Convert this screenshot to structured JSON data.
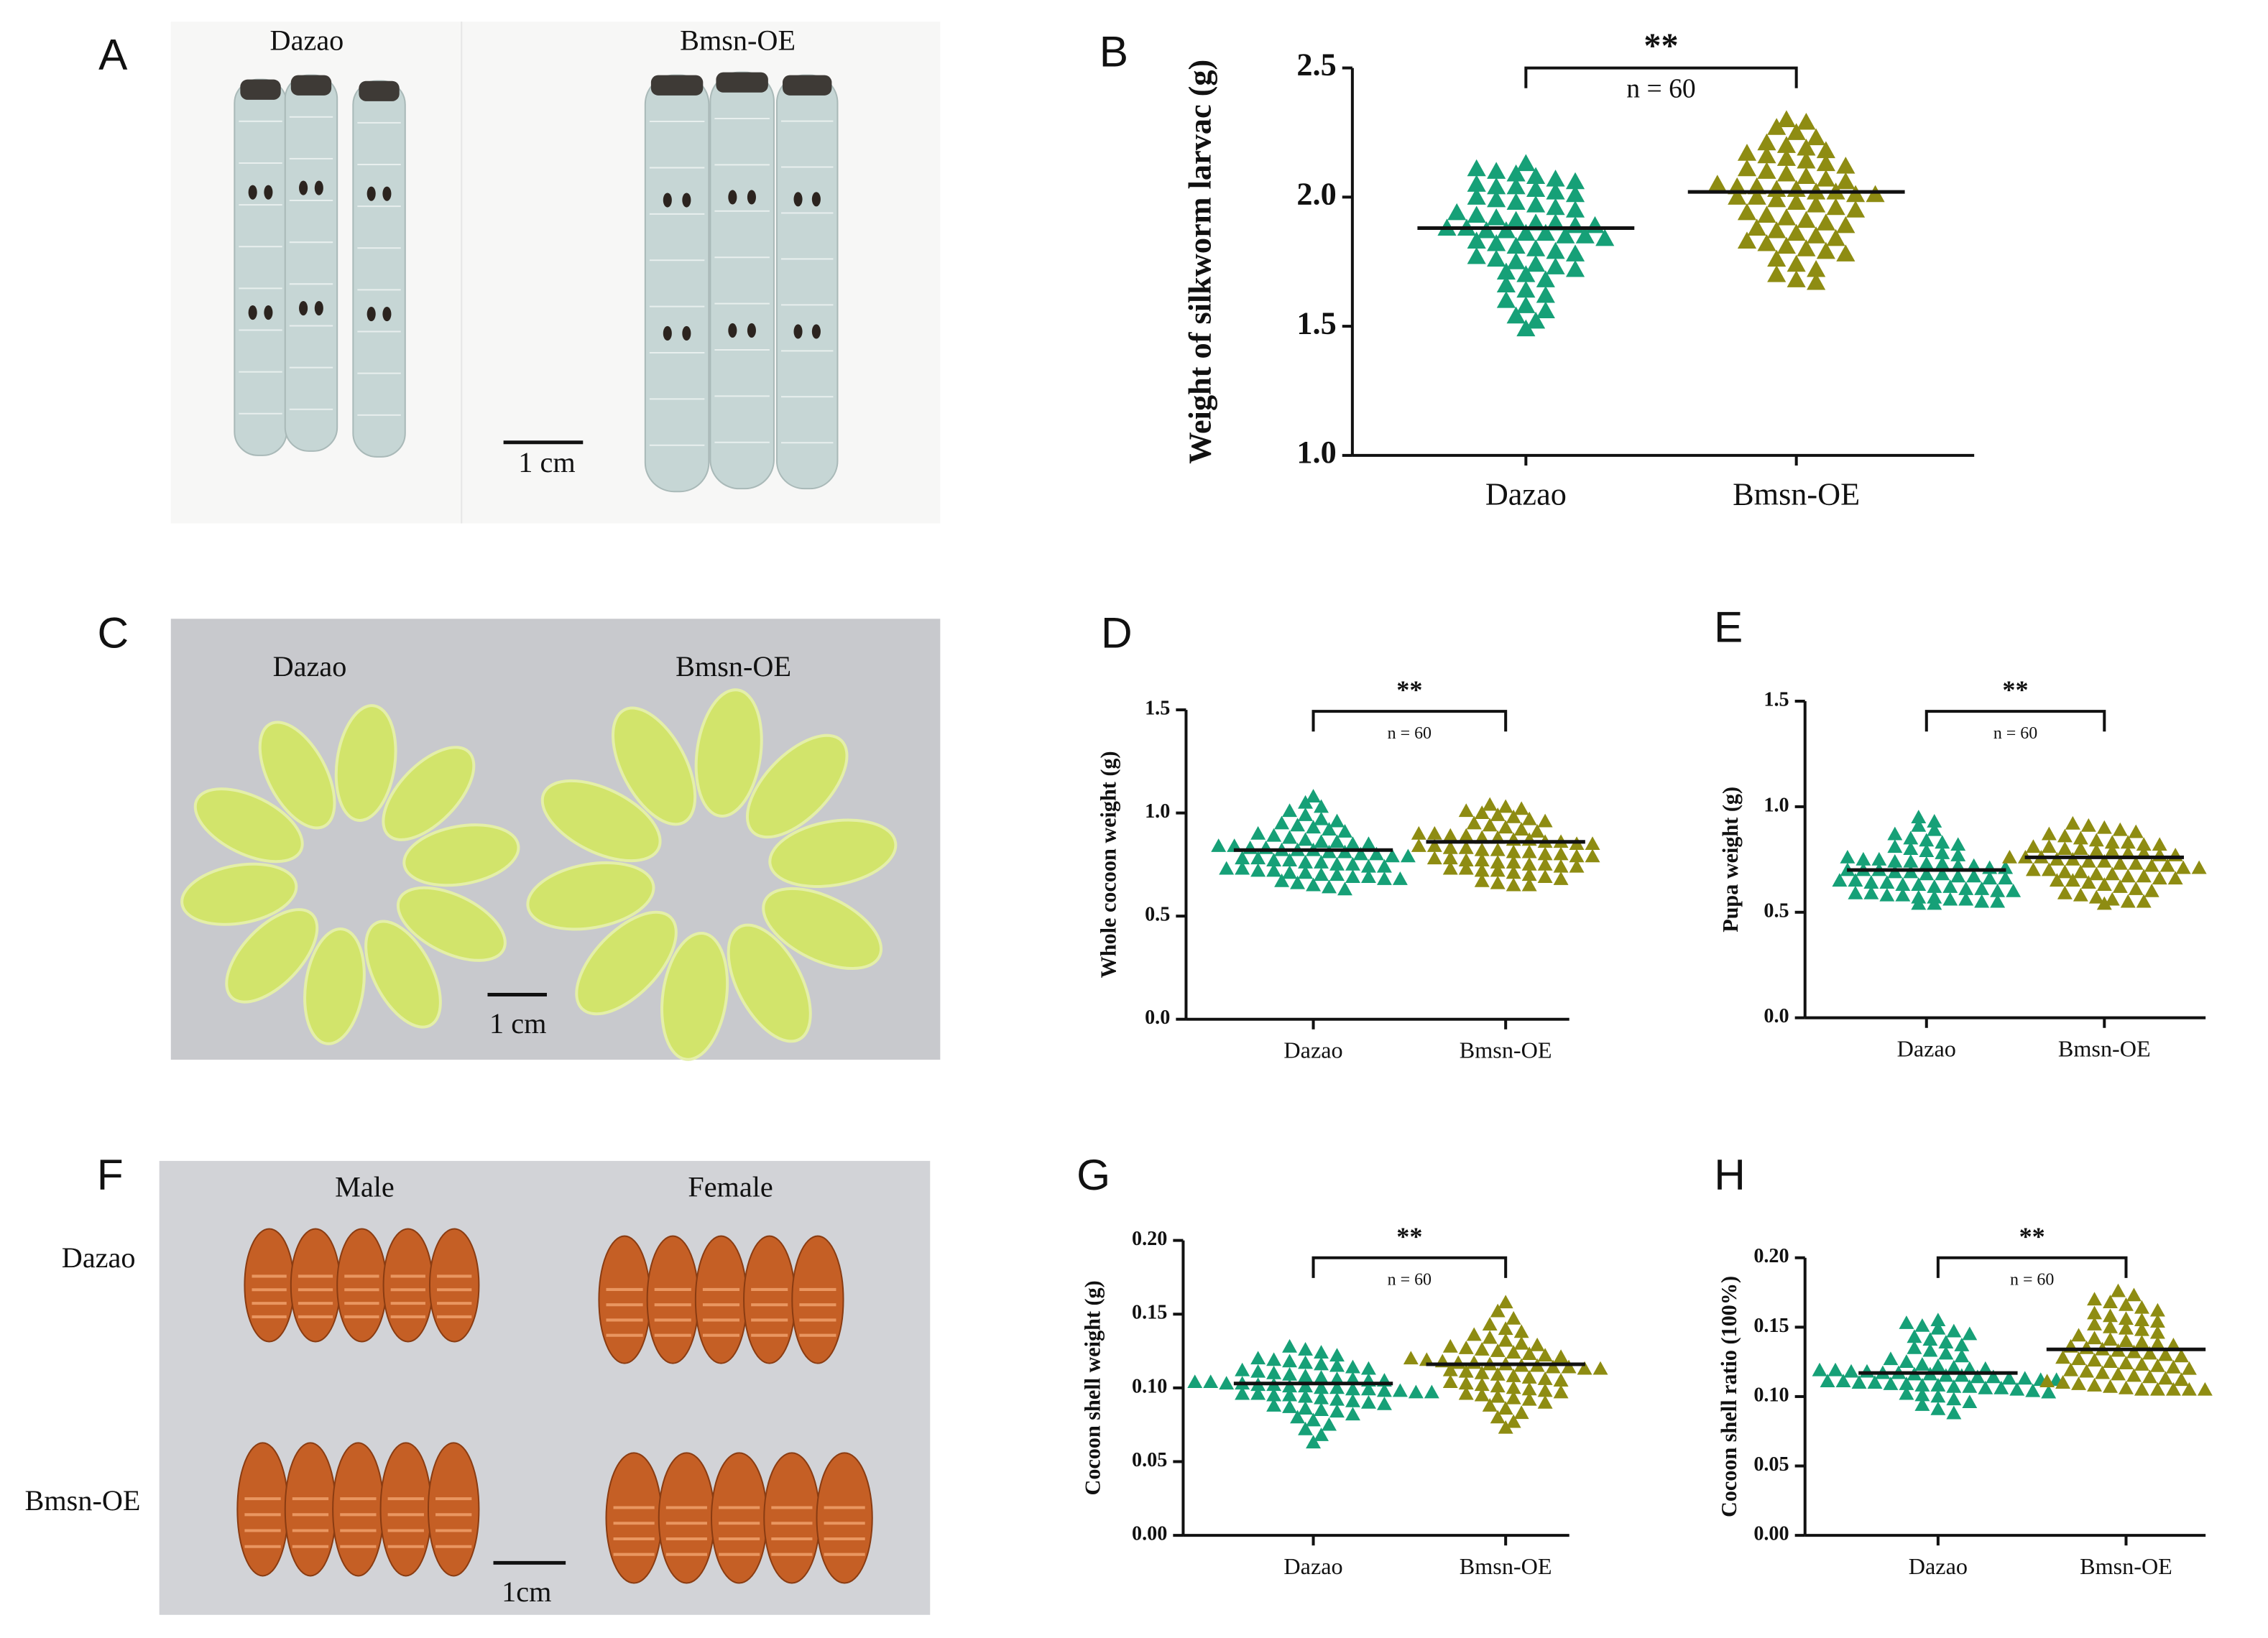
{
  "photos": [
    {
      "panel": "A",
      "labels": [
        "Dazao",
        "Bmsn-OE",
        "1 cm"
      ]
    },
    {
      "panel": "C",
      "labels": [
        "Dazao",
        "Bmsn-OE",
        "1 cm"
      ]
    },
    {
      "panel": "F",
      "labels": [
        "Male",
        "Female",
        "Dazao",
        "Bmsn-OE",
        "1cm"
      ]
    }
  ],
  "chart_data": [
    {
      "type": "strip",
      "panel": "B",
      "y_label": "Weight of silkworm larvac (g)",
      "categories": [
        "Dazao",
        "Bmsn-OE"
      ],
      "colors": [
        "#16a077",
        "#8e8c12"
      ],
      "ylim": [
        1.0,
        2.5
      ],
      "yticks": [
        {
          "value": 1.0,
          "label": "1.0"
        },
        1.5,
        {
          "value": 2.0,
          "label": "2.0"
        },
        2.5
      ],
      "significance": "**",
      "n_label": "n = 60",
      "means": [
        1.88,
        2.02
      ],
      "values": [
        [
          2.13,
          2.11,
          2.1,
          2.09,
          2.08,
          2.07,
          2.06,
          2.05,
          2.04,
          2.04,
          2.03,
          2.02,
          2.01,
          2.0,
          1.99,
          1.98,
          1.97,
          1.96,
          1.95,
          1.94,
          1.93,
          1.92,
          1.91,
          1.9,
          1.9,
          1.89,
          1.89,
          1.88,
          1.88,
          1.87,
          1.87,
          1.86,
          1.86,
          1.85,
          1.85,
          1.84,
          1.83,
          1.82,
          1.81,
          1.8,
          1.79,
          1.78,
          1.77,
          1.76,
          1.75,
          1.74,
          1.73,
          1.72,
          1.71,
          1.7,
          1.68,
          1.66,
          1.64,
          1.62,
          1.6,
          1.58,
          1.56,
          1.54,
          1.52,
          1.49
        ],
        [
          2.3,
          2.29,
          2.27,
          2.25,
          2.23,
          2.21,
          2.2,
          2.19,
          2.18,
          2.17,
          2.16,
          2.15,
          2.14,
          2.13,
          2.12,
          2.11,
          2.1,
          2.09,
          2.08,
          2.07,
          2.06,
          2.05,
          2.04,
          2.04,
          2.03,
          2.03,
          2.02,
          2.02,
          2.01,
          2.01,
          2.0,
          2.0,
          1.99,
          1.98,
          1.97,
          1.96,
          1.95,
          1.94,
          1.93,
          1.92,
          1.91,
          1.9,
          1.89,
          1.88,
          1.87,
          1.86,
          1.85,
          1.84,
          1.83,
          1.82,
          1.81,
          1.8,
          1.79,
          1.78,
          1.76,
          1.74,
          1.72,
          1.7,
          1.68,
          1.67
        ]
      ]
    },
    {
      "type": "strip",
      "panel": "D",
      "y_label": "Whole cocoon weight (g)",
      "categories": [
        "Dazao",
        "Bmsn-OE"
      ],
      "colors": [
        "#16a077",
        "#8e8c12"
      ],
      "ylim": [
        0.0,
        1.5
      ],
      "yticks": [
        {
          "value": 0.0,
          "label": "0.0"
        },
        0.5,
        {
          "value": 1.0,
          "label": "1.0"
        },
        1.5
      ],
      "significance": "**",
      "n_label": "n = 60",
      "means": [
        0.82,
        0.86
      ],
      "values": [
        [
          1.08,
          1.05,
          1.03,
          1.01,
          0.99,
          0.97,
          0.96,
          0.95,
          0.94,
          0.93,
          0.92,
          0.91,
          0.9,
          0.89,
          0.88,
          0.87,
          0.86,
          0.86,
          0.85,
          0.85,
          0.84,
          0.84,
          0.83,
          0.83,
          0.82,
          0.82,
          0.82,
          0.81,
          0.81,
          0.8,
          0.8,
          0.79,
          0.79,
          0.78,
          0.78,
          0.77,
          0.77,
          0.76,
          0.76,
          0.75,
          0.75,
          0.74,
          0.74,
          0.73,
          0.73,
          0.72,
          0.72,
          0.71,
          0.71,
          0.7,
          0.7,
          0.69,
          0.69,
          0.68,
          0.68,
          0.67,
          0.66,
          0.65,
          0.64,
          0.63
        ],
        [
          1.04,
          1.03,
          1.02,
          1.01,
          1.0,
          0.99,
          0.98,
          0.97,
          0.96,
          0.95,
          0.94,
          0.93,
          0.92,
          0.91,
          0.9,
          0.9,
          0.89,
          0.89,
          0.88,
          0.88,
          0.87,
          0.87,
          0.86,
          0.86,
          0.85,
          0.85,
          0.84,
          0.84,
          0.83,
          0.83,
          0.82,
          0.82,
          0.81,
          0.81,
          0.8,
          0.8,
          0.79,
          0.79,
          0.78,
          0.78,
          0.77,
          0.77,
          0.76,
          0.76,
          0.75,
          0.75,
          0.74,
          0.74,
          0.73,
          0.73,
          0.72,
          0.72,
          0.71,
          0.7,
          0.69,
          0.68,
          0.67,
          0.66,
          0.65,
          0.65
        ]
      ]
    },
    {
      "type": "strip",
      "panel": "E",
      "y_label": "Pupa weight (g)",
      "categories": [
        "Dazao",
        "Bmsn-OE"
      ],
      "colors": [
        "#16a077",
        "#8e8c12"
      ],
      "ylim": [
        0.0,
        1.5
      ],
      "yticks": [
        {
          "value": 0.0,
          "label": "0.0"
        },
        0.5,
        {
          "value": 1.0,
          "label": "1.0"
        },
        1.5
      ],
      "significance": "**",
      "n_label": "n = 60",
      "means": [
        0.7,
        0.76
      ],
      "values": [
        [
          0.95,
          0.93,
          0.91,
          0.89,
          0.87,
          0.85,
          0.84,
          0.83,
          0.82,
          0.81,
          0.8,
          0.79,
          0.78,
          0.77,
          0.76,
          0.75,
          0.75,
          0.74,
          0.74,
          0.73,
          0.73,
          0.72,
          0.72,
          0.71,
          0.71,
          0.7,
          0.7,
          0.7,
          0.69,
          0.69,
          0.68,
          0.68,
          0.67,
          0.67,
          0.66,
          0.66,
          0.65,
          0.65,
          0.64,
          0.64,
          0.63,
          0.63,
          0.62,
          0.62,
          0.61,
          0.61,
          0.6,
          0.6,
          0.59,
          0.59,
          0.58,
          0.58,
          0.57,
          0.57,
          0.56,
          0.56,
          0.55,
          0.55,
          0.54,
          0.54
        ],
        [
          0.92,
          0.91,
          0.9,
          0.89,
          0.88,
          0.87,
          0.86,
          0.85,
          0.84,
          0.83,
          0.83,
          0.82,
          0.82,
          0.81,
          0.81,
          0.8,
          0.8,
          0.79,
          0.79,
          0.78,
          0.78,
          0.77,
          0.77,
          0.76,
          0.76,
          0.76,
          0.75,
          0.75,
          0.74,
          0.74,
          0.73,
          0.73,
          0.72,
          0.72,
          0.71,
          0.71,
          0.7,
          0.7,
          0.69,
          0.69,
          0.68,
          0.68,
          0.67,
          0.67,
          0.66,
          0.66,
          0.65,
          0.65,
          0.64,
          0.63,
          0.62,
          0.61,
          0.6,
          0.59,
          0.58,
          0.57,
          0.56,
          0.55,
          0.55,
          0.54
        ]
      ]
    },
    {
      "type": "strip",
      "panel": "G",
      "y_label": "Cocoon shell weight (g)",
      "categories": [
        "Dazao",
        "Bmsn-OE"
      ],
      "colors": [
        "#16a077",
        "#8e8c12"
      ],
      "ylim": [
        0.0,
        0.2
      ],
      "yticks": [
        {
          "value": 0.0,
          "label": "0.00"
        },
        0.05,
        {
          "value": 0.1,
          "label": "0.10"
        },
        0.15,
        {
          "value": 0.2,
          "label": "0.20"
        }
      ],
      "significance": "**",
      "n_label": "n = 60",
      "means": [
        0.103,
        0.116
      ],
      "values": [
        [
          0.128,
          0.126,
          0.124,
          0.122,
          0.12,
          0.119,
          0.118,
          0.117,
          0.116,
          0.115,
          0.114,
          0.113,
          0.112,
          0.111,
          0.11,
          0.109,
          0.108,
          0.107,
          0.106,
          0.106,
          0.105,
          0.105,
          0.104,
          0.104,
          0.103,
          0.103,
          0.102,
          0.102,
          0.101,
          0.101,
          0.1,
          0.1,
          0.099,
          0.099,
          0.098,
          0.098,
          0.097,
          0.097,
          0.096,
          0.096,
          0.095,
          0.095,
          0.094,
          0.093,
          0.092,
          0.091,
          0.09,
          0.089,
          0.088,
          0.087,
          0.086,
          0.085,
          0.084,
          0.082,
          0.08,
          0.078,
          0.075,
          0.072,
          0.068,
          0.063
        ],
        [
          0.158,
          0.152,
          0.147,
          0.143,
          0.14,
          0.138,
          0.136,
          0.134,
          0.132,
          0.13,
          0.129,
          0.128,
          0.127,
          0.126,
          0.125,
          0.124,
          0.123,
          0.122,
          0.121,
          0.12,
          0.119,
          0.118,
          0.117,
          0.117,
          0.116,
          0.116,
          0.115,
          0.115,
          0.114,
          0.114,
          0.113,
          0.113,
          0.112,
          0.111,
          0.11,
          0.109,
          0.108,
          0.107,
          0.106,
          0.105,
          0.104,
          0.103,
          0.102,
          0.101,
          0.1,
          0.099,
          0.098,
          0.097,
          0.096,
          0.095,
          0.094,
          0.093,
          0.092,
          0.09,
          0.088,
          0.086,
          0.083,
          0.08,
          0.077,
          0.073
        ]
      ]
    },
    {
      "type": "strip",
      "panel": "H",
      "y_label": "Cocoon shell ratio (100%)",
      "categories": [
        "Dazao",
        "Bmsn-OE"
      ],
      "colors": [
        "#16a077",
        "#8e8c12"
      ],
      "ylim": [
        0.0,
        0.2
      ],
      "yticks": [
        {
          "value": 0.0,
          "label": "0.00"
        },
        0.05,
        {
          "value": 0.1,
          "label": "0.10"
        },
        0.15,
        {
          "value": 0.2,
          "label": "0.20"
        }
      ],
      "significance": "**",
      "n_label": "n = 60",
      "means": [
        0.117,
        0.134
      ],
      "values": [
        [
          0.155,
          0.153,
          0.151,
          0.149,
          0.147,
          0.145,
          0.143,
          0.141,
          0.139,
          0.137,
          0.135,
          0.133,
          0.131,
          0.129,
          0.127,
          0.125,
          0.123,
          0.122,
          0.121,
          0.12,
          0.12,
          0.119,
          0.119,
          0.118,
          0.118,
          0.117,
          0.117,
          0.116,
          0.116,
          0.115,
          0.115,
          0.114,
          0.114,
          0.113,
          0.113,
          0.112,
          0.112,
          0.111,
          0.111,
          0.11,
          0.11,
          0.109,
          0.109,
          0.108,
          0.108,
          0.107,
          0.107,
          0.106,
          0.106,
          0.105,
          0.104,
          0.103,
          0.102,
          0.101,
          0.1,
          0.098,
          0.096,
          0.094,
          0.091,
          0.088
        ],
        [
          0.176,
          0.173,
          0.17,
          0.168,
          0.166,
          0.164,
          0.162,
          0.16,
          0.158,
          0.156,
          0.155,
          0.154,
          0.152,
          0.15,
          0.149,
          0.148,
          0.146,
          0.144,
          0.142,
          0.141,
          0.14,
          0.139,
          0.138,
          0.137,
          0.136,
          0.135,
          0.134,
          0.133,
          0.132,
          0.131,
          0.13,
          0.129,
          0.128,
          0.127,
          0.126,
          0.125,
          0.124,
          0.123,
          0.122,
          0.121,
          0.12,
          0.119,
          0.118,
          0.117,
          0.116,
          0.115,
          0.114,
          0.113,
          0.112,
          0.111,
          0.11,
          0.109,
          0.108,
          0.107,
          0.106,
          0.105,
          0.105,
          0.105,
          0.105,
          0.105
        ]
      ]
    }
  ]
}
